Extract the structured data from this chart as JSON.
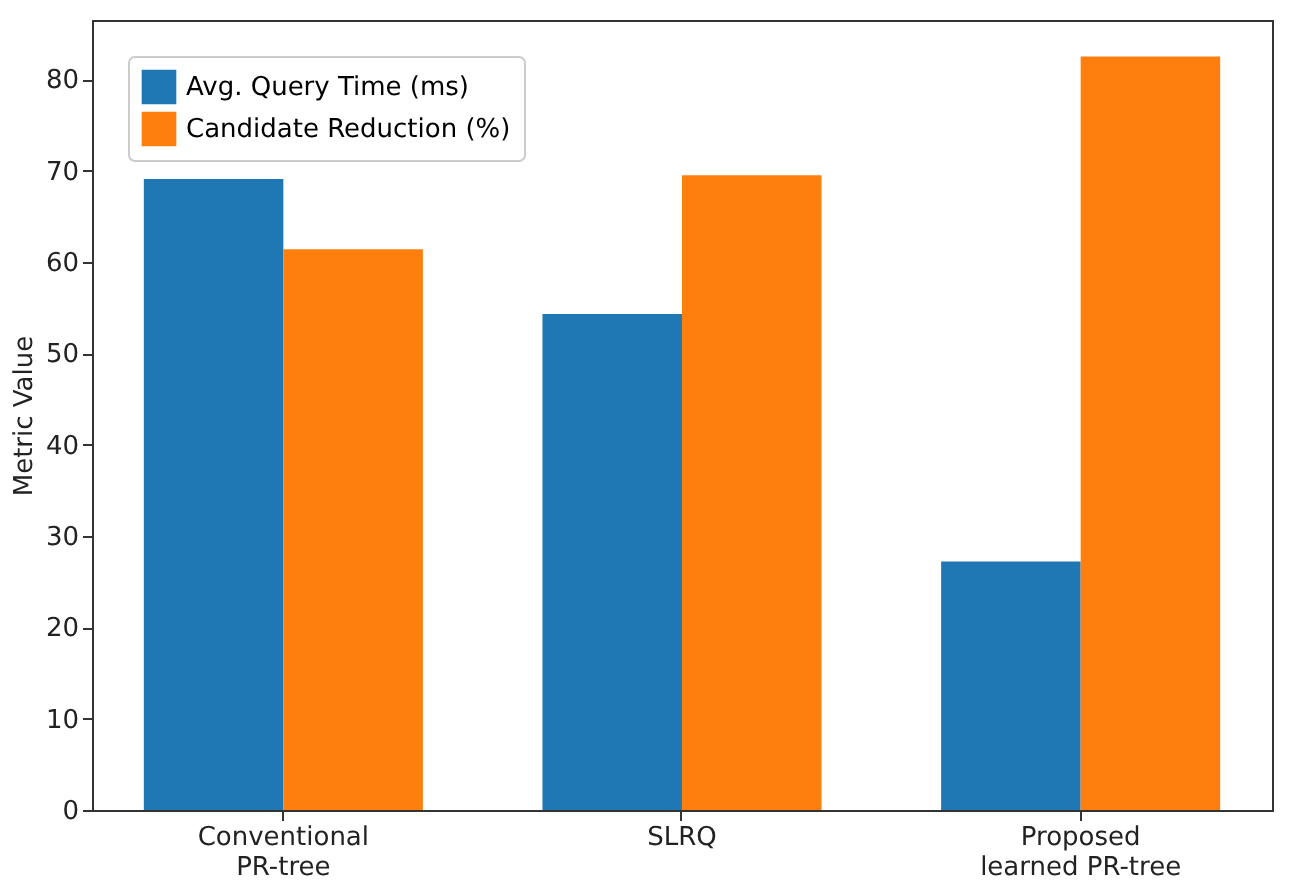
{
  "chart_data": {
    "type": "bar",
    "ylabel": "Metric Value",
    "categories": [
      "Conventional\nPR-tree",
      "SLRQ",
      "Proposed\nlearned PR-tree"
    ],
    "series": [
      {
        "name": "Avg. Query Time (ms)",
        "color": "#1f77b4",
        "values": [
          69.1,
          54.3,
          27.2
        ]
      },
      {
        "name": "Candidate Reduction (%)",
        "color": "#ff7f0e",
        "values": [
          61.4,
          69.5,
          82.5
        ]
      }
    ],
    "ylim": [
      0,
      86.5
    ],
    "yticks": [
      0,
      10,
      20,
      30,
      40,
      50,
      60,
      70,
      80
    ],
    "grid": false,
    "legend": "top left"
  }
}
